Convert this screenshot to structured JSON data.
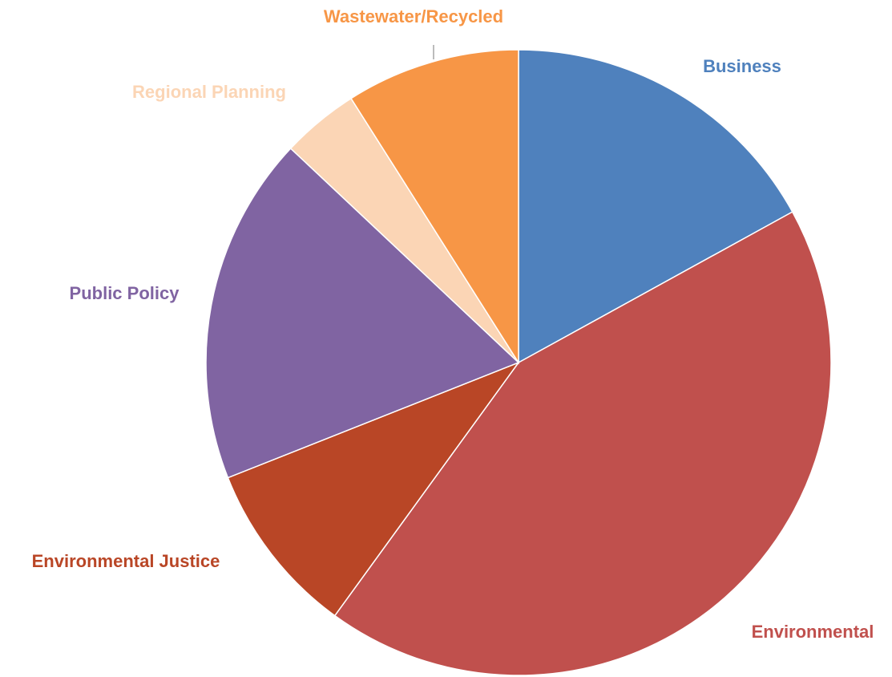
{
  "chart_data": {
    "type": "pie",
    "title": "",
    "legend": "none",
    "data_labels": "category names outside slices",
    "start": "top, clockwise",
    "slices": [
      {
        "label": "Business",
        "value": 17,
        "color": "#4F81BD"
      },
      {
        "label": "Environmental",
        "value": 43,
        "color": "#C0504D"
      },
      {
        "label": "Environmental Justice",
        "value": 9,
        "color": "#B94626"
      },
      {
        "label": "Public Policy",
        "value": 18,
        "color": "#8064A2"
      },
      {
        "label": "Regional Planning",
        "value": 4,
        "color": "#FBD5B5"
      },
      {
        "label": "Wastewater/Recycled",
        "value": 9,
        "color": "#F79646"
      }
    ]
  }
}
